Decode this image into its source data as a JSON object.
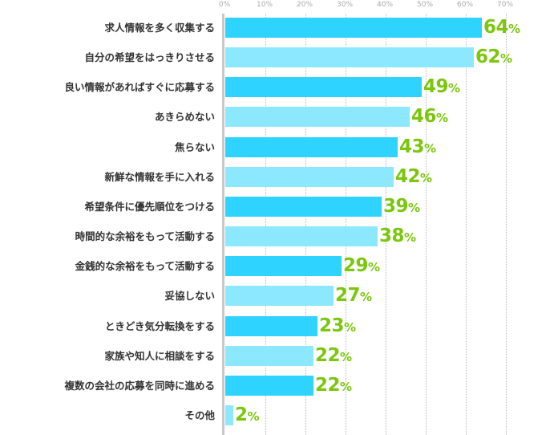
{
  "chart_data": {
    "type": "bar",
    "orientation": "horizontal",
    "title": "",
    "xlabel": "",
    "ylabel": "",
    "xlim": [
      0,
      70
    ],
    "ticks": [
      "0%",
      "10%",
      "20%",
      "30%",
      "40%",
      "50%",
      "60%",
      "70%"
    ],
    "grid": true,
    "categories": [
      "求人情報を多く収集する",
      "自分の希望をはっきりさせる",
      "良い情報があればすぐに応募する",
      "あきらめない",
      "焦らない",
      "新鮮な情報を手に入れる",
      "希望条件に優先順位をつける",
      "時間的な余裕をもって活動する",
      "金銭的な余裕をもって活動する",
      "妥協しない",
      "ときどき気分転換をする",
      "家族や知人に相談をする",
      "複数の会社の応募を同時に進める",
      "その他"
    ],
    "values": [
      64,
      62,
      49,
      46,
      43,
      42,
      39,
      38,
      29,
      27,
      23,
      22,
      22,
      2
    ],
    "value_suffix": "%",
    "colors": {
      "bar_dark": "#2ed3ff",
      "bar_light": "#8ce8ff",
      "value_text": "#7ac70c",
      "axis": "#c8c8c8"
    }
  }
}
